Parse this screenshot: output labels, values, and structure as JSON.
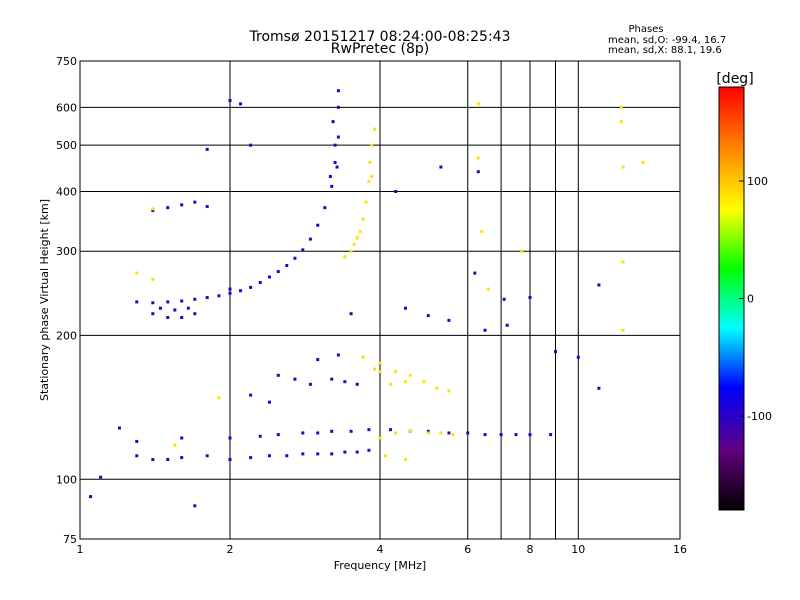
{
  "chart_data": {
    "type": "scatter",
    "title": "Tromsø 20151217 08:24:00-08:25:43",
    "subtitle": "RwPretec (8p)",
    "xlabel": "Frequency [MHz]",
    "ylabel": "Stationary phase Virtual Height [km]",
    "xscale": "log",
    "yscale": "log",
    "xlim": [
      1,
      16
    ],
    "ylim": [
      75,
      750
    ],
    "x_ticks": [
      1,
      2,
      4,
      6,
      8,
      10,
      16
    ],
    "x_tick_labels": [
      "1",
      "2",
      "4",
      "6",
      "8",
      "10",
      "16"
    ],
    "x_grid": [
      2,
      4,
      6,
      7,
      8,
      9,
      10
    ],
    "y_ticks": [
      75,
      100,
      200,
      300,
      400,
      500,
      600,
      750
    ],
    "y_tick_labels": [
      "75",
      "100",
      "200",
      "300",
      "400",
      "500",
      "600",
      "750"
    ],
    "y_grid": [
      100,
      200,
      300,
      400,
      500,
      600
    ],
    "grid": true,
    "color_metric": "phase",
    "colorbar": {
      "label": "[deg]",
      "range": [
        -180,
        180
      ],
      "ticks": [
        100,
        0,
        -100
      ],
      "tick_labels": [
        "100",
        "0",
        "-100"
      ],
      "colors": [
        "#ff0000",
        "#ff8000",
        "#ffff00",
        "#00ff00",
        "#00ffff",
        "#0000ff",
        "#600080",
        "#000000"
      ]
    },
    "annotation": {
      "title": "Phases",
      "line1": "mean, sd,O:  -99.4, 16.7",
      "line2": "mean, sd,X:   88.1, 19.6"
    },
    "series": [
      {
        "name": "O",
        "mean_phase": -99.4,
        "points": [
          [
            1.3,
            235
          ],
          [
            1.4,
            234
          ],
          [
            1.5,
            235
          ],
          [
            1.6,
            236
          ],
          [
            1.7,
            238
          ],
          [
            1.8,
            240
          ],
          [
            1.9,
            242
          ],
          [
            2.0,
            245
          ],
          [
            2.1,
            248
          ],
          [
            2.2,
            252
          ],
          [
            2.3,
            258
          ],
          [
            2.4,
            265
          ],
          [
            2.5,
            272
          ],
          [
            2.6,
            280
          ],
          [
            2.7,
            290
          ],
          [
            2.8,
            302
          ],
          [
            2.9,
            318
          ],
          [
            3.0,
            340
          ],
          [
            3.1,
            370
          ],
          [
            3.2,
            410
          ],
          [
            3.25,
            460
          ],
          [
            3.3,
            520
          ],
          [
            3.3,
            600
          ],
          [
            3.3,
            650
          ],
          [
            3.22,
            560
          ],
          [
            3.25,
            500
          ],
          [
            3.28,
            450
          ],
          [
            3.18,
            430
          ],
          [
            1.4,
            222
          ],
          [
            1.5,
            218
          ],
          [
            1.6,
            218
          ],
          [
            1.7,
            222
          ],
          [
            1.45,
            228
          ],
          [
            1.55,
            226
          ],
          [
            1.65,
            228
          ],
          [
            1.5,
            370
          ],
          [
            1.6,
            375
          ],
          [
            1.7,
            380
          ],
          [
            1.8,
            372
          ],
          [
            1.4,
            365
          ],
          [
            1.3,
            112
          ],
          [
            1.4,
            110
          ],
          [
            1.5,
            110
          ],
          [
            1.6,
            111
          ],
          [
            1.8,
            112
          ],
          [
            2.0,
            110
          ],
          [
            2.2,
            111
          ],
          [
            2.4,
            112
          ],
          [
            2.6,
            112
          ],
          [
            2.8,
            113
          ],
          [
            3.0,
            113
          ],
          [
            3.2,
            113
          ],
          [
            3.4,
            114
          ],
          [
            3.6,
            114
          ],
          [
            3.8,
            115
          ],
          [
            1.3,
            120
          ],
          [
            1.6,
            122
          ],
          [
            2.0,
            122
          ],
          [
            2.3,
            123
          ],
          [
            2.5,
            124
          ],
          [
            2.8,
            125
          ],
          [
            3.0,
            125
          ],
          [
            3.2,
            126
          ],
          [
            3.5,
            126
          ],
          [
            3.8,
            127
          ],
          [
            4.2,
            127
          ],
          [
            4.6,
            126
          ],
          [
            5.0,
            126
          ],
          [
            5.5,
            125
          ],
          [
            6.0,
            125
          ],
          [
            6.5,
            124
          ],
          [
            7.0,
            124
          ],
          [
            7.5,
            124
          ],
          [
            8.0,
            124
          ],
          [
            8.8,
            124
          ],
          [
            2.5,
            165
          ],
          [
            2.7,
            162
          ],
          [
            2.9,
            158
          ],
          [
            3.2,
            162
          ],
          [
            3.4,
            160
          ],
          [
            3.6,
            158
          ],
          [
            2.2,
            150
          ],
          [
            2.4,
            145
          ],
          [
            3.0,
            178
          ],
          [
            3.3,
            182
          ],
          [
            4.3,
            400
          ],
          [
            4.5,
            228
          ],
          [
            5.0,
            220
          ],
          [
            3.5,
            222
          ],
          [
            5.5,
            215
          ],
          [
            6.3,
            440
          ],
          [
            6.5,
            205
          ],
          [
            7.2,
            210
          ],
          [
            8.0,
            240
          ],
          [
            9.0,
            185
          ],
          [
            10.0,
            180
          ],
          [
            11.0,
            155
          ],
          [
            11.0,
            255
          ],
          [
            2.0,
            620
          ],
          [
            2.1,
            610
          ],
          [
            2.2,
            500
          ],
          [
            2.0,
            250
          ],
          [
            1.8,
            490
          ],
          [
            1.05,
            92
          ],
          [
            1.1,
            101
          ],
          [
            1.2,
            128
          ],
          [
            1.7,
            88
          ],
          [
            5.3,
            450
          ],
          [
            6.2,
            270
          ],
          [
            7.1,
            238
          ]
        ]
      },
      {
        "name": "X",
        "mean_phase": 88.1,
        "points": [
          [
            3.4,
            292
          ],
          [
            3.5,
            300
          ],
          [
            3.6,
            320
          ],
          [
            3.7,
            350
          ],
          [
            3.75,
            380
          ],
          [
            3.8,
            420
          ],
          [
            3.82,
            460
          ],
          [
            3.85,
            500
          ],
          [
            3.9,
            540
          ],
          [
            3.85,
            430
          ],
          [
            3.65,
            330
          ],
          [
            3.55,
            310
          ],
          [
            3.9,
            170
          ],
          [
            4.0,
            168
          ],
          [
            4.3,
            168
          ],
          [
            4.6,
            165
          ],
          [
            4.9,
            160
          ],
          [
            5.2,
            155
          ],
          [
            5.5,
            153
          ],
          [
            4.2,
            158
          ],
          [
            4.5,
            160
          ],
          [
            4.0,
            122
          ],
          [
            4.3,
            125
          ],
          [
            4.6,
            126
          ],
          [
            5.0,
            125
          ],
          [
            5.3,
            125
          ],
          [
            5.6,
            124
          ],
          [
            4.1,
            112
          ],
          [
            4.5,
            110
          ],
          [
            3.7,
            180
          ],
          [
            4.0,
            175
          ],
          [
            6.3,
            610
          ],
          [
            6.3,
            470
          ],
          [
            6.4,
            330
          ],
          [
            6.6,
            250
          ],
          [
            7.7,
            300
          ],
          [
            12.2,
            600
          ],
          [
            12.2,
            560
          ],
          [
            12.3,
            450
          ],
          [
            13.5,
            460
          ],
          [
            12.3,
            205
          ],
          [
            12.3,
            285
          ],
          [
            1.4,
            368
          ],
          [
            1.4,
            262
          ],
          [
            1.3,
            270
          ],
          [
            1.55,
            118
          ],
          [
            1.9,
            148
          ]
        ]
      }
    ]
  }
}
